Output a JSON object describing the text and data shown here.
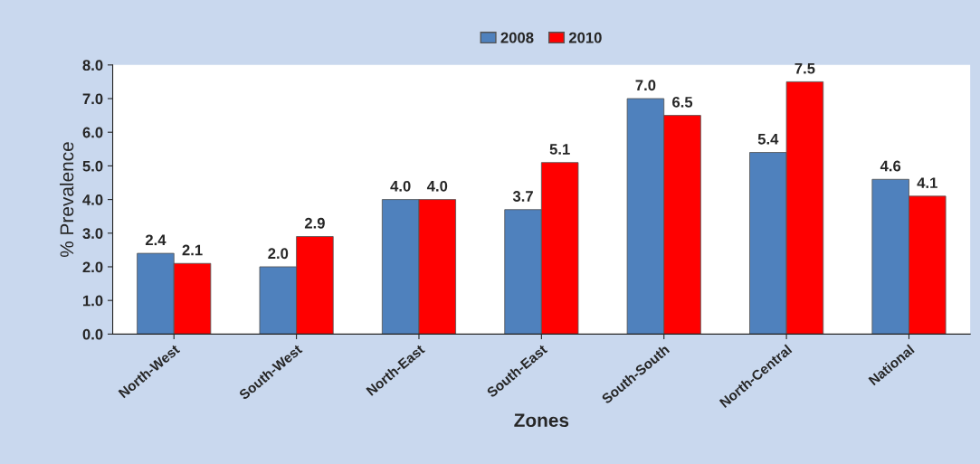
{
  "chart_data": {
    "type": "bar",
    "xlabel": "Zones",
    "ylabel": "% Prevalence",
    "categories": [
      "North-West",
      "South-West",
      "North-East",
      "South-East",
      "South-South",
      "North-Central",
      "National"
    ],
    "series": [
      {
        "name": "2008",
        "color": "#4f81bd",
        "values": [
          2.4,
          2.0,
          4.0,
          3.7,
          7.0,
          5.4,
          4.6
        ],
        "value_labels": [
          "2.4",
          "2.0",
          "4.0",
          "3.7",
          "7.0",
          "5.4",
          "4.6"
        ]
      },
      {
        "name": "2010",
        "color": "#ff0000",
        "values": [
          2.1,
          2.9,
          4.0,
          5.1,
          6.5,
          7.5,
          4.1
        ],
        "value_labels": [
          "2.1",
          "2.9",
          "4.0",
          "5.1",
          "6.5",
          "7.5",
          "4.1"
        ]
      }
    ],
    "ylim": [
      0,
      8
    ],
    "yticks": [
      {
        "value": 0,
        "label": "0.0"
      },
      {
        "value": 1,
        "label": "1.0"
      },
      {
        "value": 2,
        "label": "2.0"
      },
      {
        "value": 3,
        "label": "3.0"
      },
      {
        "value": 4,
        "label": "4.0"
      },
      {
        "value": 5,
        "label": "5.0"
      },
      {
        "value": 6,
        "label": "6.0"
      },
      {
        "value": 7,
        "label": "7.0"
      },
      {
        "value": 8,
        "label": "8.0"
      }
    ],
    "grid": false,
    "legend": "top"
  }
}
